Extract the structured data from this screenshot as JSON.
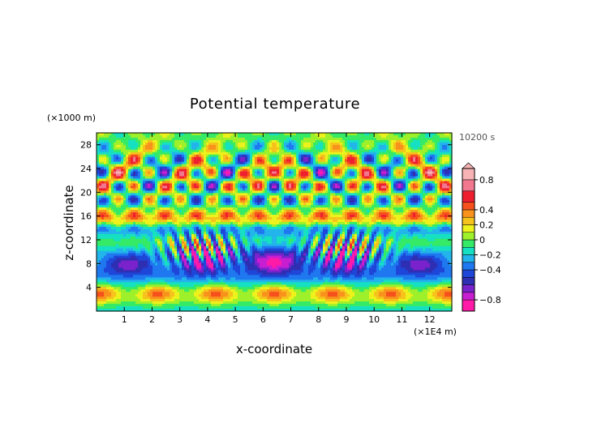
{
  "chart_data": {
    "type": "heatmap",
    "title": "Potential temperature",
    "xlabel": "x-coordinate",
    "ylabel": "z-coordinate",
    "x_unit": "(×1E4 m)",
    "y_unit": "(×1000 m)",
    "time_label": "10200 s",
    "xlim": [
      0,
      12.8
    ],
    "ylim": [
      0,
      30
    ],
    "x_ticks": [
      1,
      2,
      3,
      4,
      5,
      6,
      7,
      8,
      9,
      10,
      11,
      12
    ],
    "y_ticks": [
      4,
      8,
      12,
      16,
      20,
      24,
      28
    ],
    "colorbar": {
      "range": [
        -0.95,
        0.95
      ],
      "tick_values": [
        0.8,
        0.4,
        0.2,
        0,
        -0.2,
        -0.4,
        -0.8
      ],
      "tick_labels": [
        "0.8",
        "0.4",
        "0.2",
        "0",
        "−0.2",
        "−0.4",
        "−0.8"
      ],
      "levels": [
        {
          "min": -0.95,
          "max": -0.8,
          "color": "#ff1aa8"
        },
        {
          "min": -0.8,
          "max": -0.7,
          "color": "#c81ed2"
        },
        {
          "min": -0.7,
          "max": -0.6,
          "color": "#7a22cc"
        },
        {
          "min": -0.6,
          "max": -0.5,
          "color": "#2f2fb4"
        },
        {
          "min": -0.5,
          "max": -0.4,
          "color": "#1e46d8"
        },
        {
          "min": -0.4,
          "max": -0.3,
          "color": "#1f78f0"
        },
        {
          "min": -0.3,
          "max": -0.2,
          "color": "#22b4ea"
        },
        {
          "min": -0.2,
          "max": -0.1,
          "color": "#16e0c2"
        },
        {
          "min": -0.1,
          "max": 0.0,
          "color": "#34ea66"
        },
        {
          "min": 0.0,
          "max": 0.1,
          "color": "#9ef02a"
        },
        {
          "min": 0.1,
          "max": 0.2,
          "color": "#eef21c"
        },
        {
          "min": 0.2,
          "max": 0.3,
          "color": "#f6c21c"
        },
        {
          "min": 0.3,
          "max": 0.4,
          "color": "#f8921c"
        },
        {
          "min": 0.4,
          "max": 0.5,
          "color": "#f6501c"
        },
        {
          "min": 0.5,
          "max": 0.65,
          "color": "#ee2030"
        },
        {
          "min": 0.65,
          "max": 0.8,
          "color": "#f27890"
        },
        {
          "min": 0.8,
          "max": 0.95,
          "color": "#f8b4b4"
        }
      ]
    }
  }
}
